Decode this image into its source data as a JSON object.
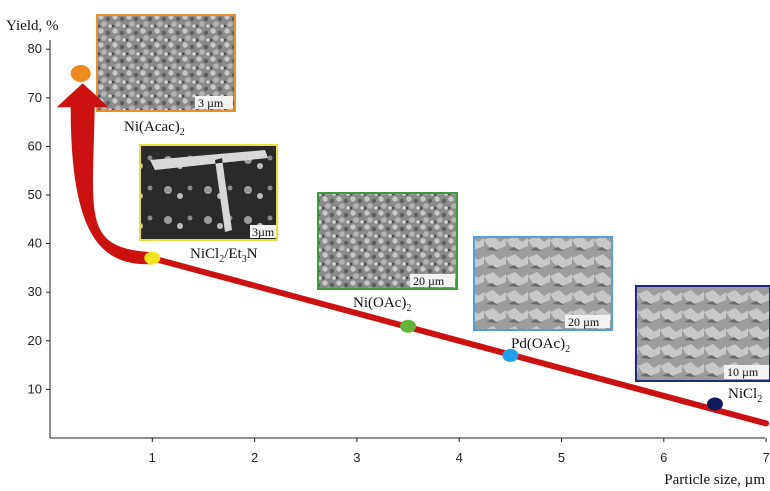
{
  "chart_data": {
    "type": "scatter",
    "ylabel": "Yield, %",
    "xlabel": "Particle size, µm",
    "xlim": [
      0,
      7
    ],
    "ylim": [
      0,
      80
    ],
    "x_ticks": [
      "1",
      "2",
      "3",
      "4",
      "5",
      "6",
      "7"
    ],
    "y_ticks": [
      "10",
      "20",
      "30",
      "40",
      "50",
      "60",
      "70",
      "80"
    ],
    "points": [
      {
        "x": 0.3,
        "y": 75,
        "color": "#f08a1c",
        "label_main": "Ni(Acac)",
        "label_sub": "2",
        "scale_bar": "3 µm",
        "frame_color": "#e8902a"
      },
      {
        "x": 1.0,
        "y": 37,
        "color": "#f4e41c",
        "label_main": "NiCl",
        "label_sub": "2",
        "label_rest": "/Et",
        "label_sub2": "3",
        "label_tail": "N",
        "scale_bar": "3µm",
        "frame_color": "#e8e03a"
      },
      {
        "x": 3.5,
        "y": 23,
        "color": "#66b43c",
        "label_main": "Ni(OAc)",
        "label_sub": "2",
        "scale_bar": "20 µm",
        "frame_color": "#3f9a3f"
      },
      {
        "x": 4.5,
        "y": 17,
        "color": "#1fa0ea",
        "label_main": "Pd(OAc)",
        "label_sub": "2",
        "scale_bar": "20 µm",
        "frame_color": "#4aa3dc"
      },
      {
        "x": 6.5,
        "y": 7,
        "color": "#101a5c",
        "label_main": "NiCl",
        "label_sub": "2",
        "scale_bar": "10 µm",
        "frame_color": "#1c2b78"
      }
    ],
    "trend_line": {
      "x": [
        1,
        7
      ],
      "y": [
        37,
        3
      ],
      "color": "#cc1111"
    },
    "arrow": {
      "from": {
        "x": 1.0,
        "y": 37
      },
      "to": {
        "x": 0.3,
        "y": 73
      },
      "color": "#cc1111"
    }
  }
}
